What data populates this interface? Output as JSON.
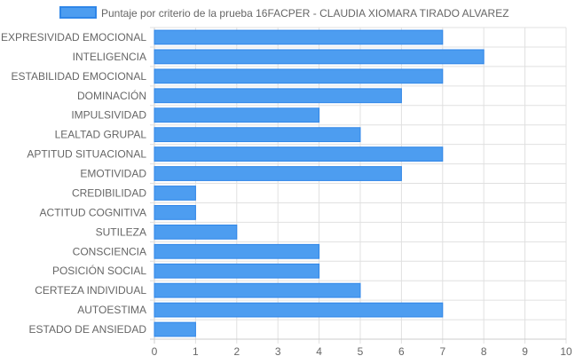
{
  "chart_data": {
    "type": "bar",
    "orientation": "horizontal",
    "legend": {
      "placement": "top-center",
      "label": "Puntaje por criterio de la prueba 16FACPER - CLAUDIA XIOMARA TIRADO ALVAREZ"
    },
    "categories": [
      "EXPRESIVIDAD EMOCIONAL",
      "INTELIGENCIA",
      "ESTABILIDAD EMOCIONAL",
      "DOMINACIÓN",
      "IMPULSIVIDAD",
      "LEALTAD GRUPAL",
      "APTITUD SITUACIONAL",
      "EMOTIVIDAD",
      "CREDIBILIDAD",
      "ACTITUD COGNITIVA",
      "SUTILEZA",
      "CONSCIENCIA",
      "POSICIÓN SOCIAL",
      "CERTEZA INDIVIDUAL",
      "AUTOESTIMA",
      "ESTADO DE ANSIEDAD"
    ],
    "series": [
      {
        "name": "Puntaje por criterio de la prueba 16FACPER - CLAUDIA XIOMARA TIRADO ALVAREZ",
        "values": [
          7,
          8,
          7,
          6,
          4,
          5,
          7,
          6,
          1,
          1,
          2,
          4,
          4,
          5,
          7,
          1
        ],
        "color": "#4d9df0",
        "border_color": "#2f86e8"
      }
    ],
    "xlim": [
      0,
      10
    ],
    "xticks": [
      "0",
      "1",
      "2",
      "3",
      "4",
      "5",
      "6",
      "7",
      "8",
      "9",
      "10"
    ],
    "grid": true,
    "colors": {
      "grid": "#e0e0e0",
      "axis": "#cccccc",
      "text": "#666666"
    }
  }
}
